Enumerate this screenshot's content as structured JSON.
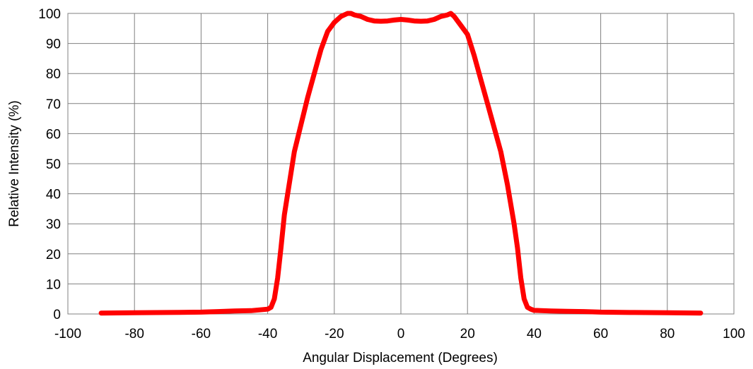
{
  "chart_data": {
    "type": "line",
    "title": "",
    "xlabel": "Angular Displacement (Degrees)",
    "ylabel": "Relative Intensity (%)",
    "xlim": [
      -100,
      100
    ],
    "ylim": [
      0,
      100
    ],
    "xticks": [
      "-100",
      "-80",
      "-60",
      "-40",
      "-20",
      "0",
      "20",
      "40",
      "60",
      "80",
      "100"
    ],
    "yticks": [
      "0",
      "10",
      "20",
      "30",
      "40",
      "50",
      "60",
      "70",
      "80",
      "90",
      "100"
    ],
    "grid": true,
    "legend": "none",
    "colors": {
      "series": "#ff0000",
      "grid": "#808080",
      "axis": "#808080",
      "text": "#000000"
    },
    "series": [
      {
        "x": [
          -90,
          -80,
          -70,
          -60,
          -55,
          -50,
          -45,
          -40,
          -39,
          -38,
          -37,
          -36,
          -35,
          -34,
          -32,
          -30,
          -28,
          -26,
          -24,
          -22,
          -20,
          -18,
          -16,
          -15,
          -14,
          -12,
          -10,
          -8,
          -6,
          -4,
          -2,
          0,
          2,
          4,
          6,
          8,
          10,
          12,
          14,
          15,
          16,
          18,
          20,
          22,
          24,
          26,
          28,
          30,
          32,
          34,
          35,
          36,
          37,
          38,
          39,
          40,
          45,
          50,
          55,
          60,
          70,
          80,
          90
        ],
        "values": [
          0.3,
          0.4,
          0.5,
          0.6,
          0.8,
          1.0,
          1.1,
          1.6,
          2.2,
          5,
          12,
          22,
          33,
          40,
          54,
          63,
          72,
          80,
          88,
          94,
          97,
          99,
          100,
          100,
          99.5,
          99,
          98,
          97.5,
          97.4,
          97.5,
          97.8,
          98,
          97.8,
          97.5,
          97.4,
          97.5,
          98,
          99,
          99.5,
          100,
          99,
          96,
          93,
          86,
          78,
          70,
          62,
          54,
          43,
          30,
          22,
          12,
          5,
          2.2,
          1.6,
          1.2,
          1.0,
          0.9,
          0.8,
          0.6,
          0.5,
          0.4,
          0.3
        ]
      }
    ]
  }
}
